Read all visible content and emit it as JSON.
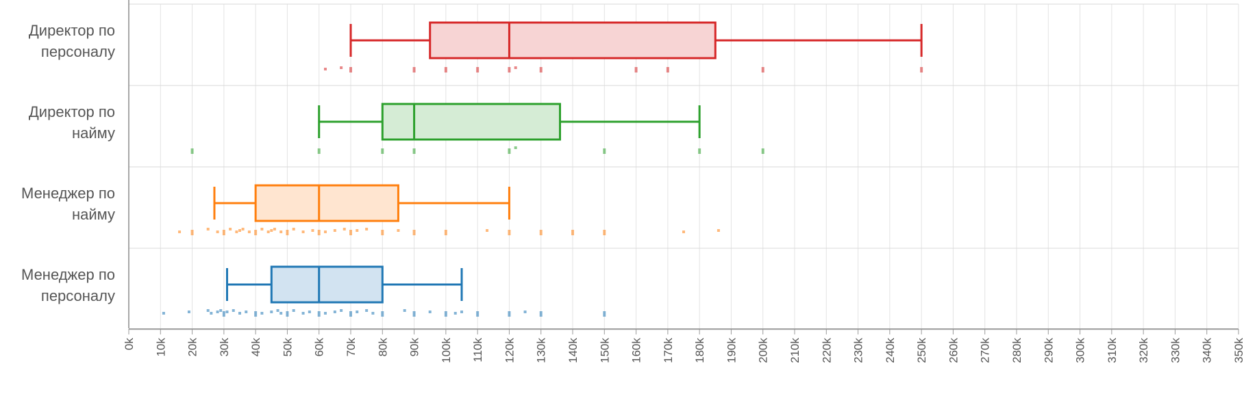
{
  "chart_data": {
    "type": "boxplot",
    "orientation": "horizontal",
    "title": "",
    "xlabel": "",
    "ylabel": "",
    "xlim": [
      0,
      350000
    ],
    "x_tick_step": 10000,
    "grid": true,
    "x_tick_labels": [
      "0k",
      "10k",
      "20k",
      "30k",
      "40k",
      "50k",
      "60k",
      "70k",
      "80k",
      "90k",
      "100k",
      "110k",
      "120k",
      "130k",
      "140k",
      "150k",
      "160k",
      "170k",
      "180k",
      "190k",
      "200k",
      "210k",
      "220k",
      "230k",
      "240k",
      "250k",
      "260k",
      "270k",
      "280k",
      "290k",
      "300k",
      "310k",
      "320k",
      "330k",
      "340k",
      "350k"
    ],
    "series": [
      {
        "category_lines": [
          "Директор по",
          "персоналу"
        ],
        "color": "#d62728",
        "fill": "#f7d4d4",
        "whisker_low": 70000,
        "q1": 95000,
        "median": 120000,
        "q3": 185000,
        "whisker_high": 250000,
        "points": [
          62000,
          67000,
          70000,
          90000,
          100000,
          110000,
          120000,
          122000,
          130000,
          160000,
          170000,
          200000,
          250000
        ]
      },
      {
        "category_lines": [
          "Директор по",
          "найму"
        ],
        "color": "#2ca02c",
        "fill": "#d5ecd5",
        "whisker_low": 60000,
        "q1": 80000,
        "median": 90000,
        "q3": 136000,
        "whisker_high": 180000,
        "points": [
          20000,
          60000,
          80000,
          90000,
          120000,
          122000,
          150000,
          180000,
          200000
        ]
      },
      {
        "category_lines": [
          "Менеджер по",
          "найму"
        ],
        "color": "#ff7f0e",
        "fill": "#ffe5d0",
        "whisker_low": 27000,
        "q1": 40000,
        "median": 60000,
        "q3": 85000,
        "whisker_high": 120000,
        "points": [
          16000,
          20000,
          25000,
          28000,
          30000,
          32000,
          34000,
          35000,
          36000,
          38000,
          40000,
          42000,
          44000,
          45000,
          46000,
          48000,
          50000,
          52000,
          55000,
          58000,
          60000,
          62000,
          65000,
          68000,
          70000,
          72000,
          75000,
          80000,
          85000,
          90000,
          100000,
          113000,
          120000,
          130000,
          140000,
          150000,
          175000,
          186000
        ]
      },
      {
        "category_lines": [
          "Менеджер по",
          "персоналу"
        ],
        "color": "#1f77b4",
        "fill": "#d2e3f1",
        "whisker_low": 31000,
        "q1": 45000,
        "median": 60000,
        "q3": 80000,
        "whisker_high": 105000,
        "points": [
          11000,
          19000,
          25000,
          26000,
          28000,
          29000,
          30000,
          31000,
          33000,
          35000,
          37000,
          40000,
          42000,
          45000,
          47000,
          48000,
          50000,
          52000,
          55000,
          57000,
          60000,
          62000,
          65000,
          67000,
          70000,
          72000,
          75000,
          77000,
          80000,
          87000,
          90000,
          95000,
          100000,
          103000,
          105000,
          110000,
          120000,
          125000,
          130000,
          150000
        ]
      }
    ]
  }
}
